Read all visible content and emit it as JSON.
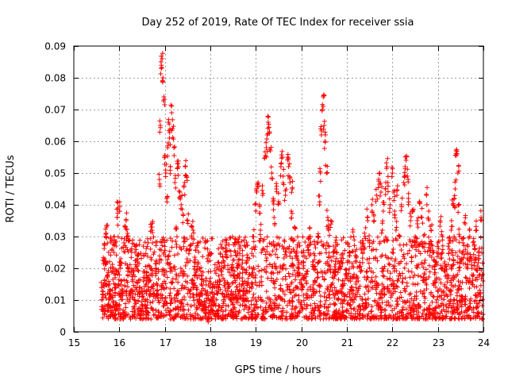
{
  "chart_data": {
    "type": "scatter",
    "title": "Day 252 of 2019, Rate Of TEC Index for receiver ssia",
    "xlabel": "GPS time / hours",
    "ylabel": "ROTI / TECUs",
    "xlim": [
      15,
      24
    ],
    "ylim": [
      0,
      0.09
    ],
    "xticks": [
      "15",
      "16",
      "17",
      "18",
      "19",
      "20",
      "21",
      "22",
      "23",
      "24"
    ],
    "yticks": [
      "0",
      "0.01",
      "0.02",
      "0.03",
      "0.04",
      "0.05",
      "0.06",
      "0.07",
      "0.08",
      "0.09"
    ],
    "grid": true,
    "marker": "+",
    "color": "#ff0000",
    "series": [
      {
        "name": "ROTI",
        "points": [
          [
            15.62,
            0.01
          ],
          [
            15.65,
            0.015
          ],
          [
            15.68,
            0.023
          ],
          [
            15.7,
            0.03
          ],
          [
            15.72,
            0.033
          ],
          [
            15.75,
            0.018
          ],
          [
            15.78,
            0.012
          ],
          [
            15.8,
            0.008
          ],
          [
            15.85,
            0.02
          ],
          [
            15.88,
            0.025
          ],
          [
            15.9,
            0.014
          ],
          [
            15.93,
            0.027
          ],
          [
            15.95,
            0.036
          ],
          [
            15.97,
            0.039
          ],
          [
            16.0,
            0.038
          ],
          [
            16.02,
            0.022
          ],
          [
            16.05,
            0.016
          ],
          [
            16.08,
            0.012
          ],
          [
            16.1,
            0.028
          ],
          [
            16.13,
            0.033
          ],
          [
            16.15,
            0.035
          ],
          [
            16.18,
            0.031
          ],
          [
            16.2,
            0.02
          ],
          [
            16.25,
            0.012
          ],
          [
            16.3,
            0.018
          ],
          [
            16.35,
            0.009
          ],
          [
            16.4,
            0.022
          ],
          [
            16.45,
            0.014
          ],
          [
            16.5,
            0.011
          ],
          [
            16.55,
            0.019
          ],
          [
            16.6,
            0.013
          ],
          [
            16.65,
            0.016
          ],
          [
            16.7,
            0.033
          ],
          [
            16.72,
            0.032
          ],
          [
            16.75,
            0.015
          ],
          [
            16.8,
            0.02
          ],
          [
            16.85,
            0.012
          ],
          [
            16.88,
            0.048
          ],
          [
            16.9,
            0.065
          ],
          [
            16.92,
            0.083
          ],
          [
            16.94,
            0.086
          ],
          [
            16.96,
            0.08
          ],
          [
            16.98,
            0.074
          ],
          [
            17.0,
            0.055
          ],
          [
            17.02,
            0.05
          ],
          [
            17.04,
            0.042
          ],
          [
            17.06,
            0.058
          ],
          [
            17.08,
            0.066
          ],
          [
            17.1,
            0.061
          ],
          [
            17.12,
            0.052
          ],
          [
            17.15,
            0.069
          ],
          [
            17.17,
            0.064
          ],
          [
            17.2,
            0.058
          ],
          [
            17.22,
            0.047
          ],
          [
            17.25,
            0.033
          ],
          [
            17.28,
            0.053
          ],
          [
            17.3,
            0.052
          ],
          [
            17.33,
            0.044
          ],
          [
            17.36,
            0.04
          ],
          [
            17.4,
            0.037
          ],
          [
            17.42,
            0.046
          ],
          [
            17.45,
            0.052
          ],
          [
            17.48,
            0.049
          ],
          [
            17.5,
            0.035
          ],
          [
            17.55,
            0.026
          ],
          [
            17.6,
            0.033
          ],
          [
            17.62,
            0.032
          ],
          [
            17.65,
            0.022
          ],
          [
            17.7,
            0.014
          ],
          [
            17.75,
            0.01
          ],
          [
            17.8,
            0.015
          ],
          [
            17.85,
            0.008
          ],
          [
            17.9,
            0.012
          ],
          [
            17.95,
            0.006
          ],
          [
            18.0,
            0.01
          ],
          [
            18.05,
            0.014
          ],
          [
            18.1,
            0.009
          ],
          [
            18.15,
            0.012
          ],
          [
            18.2,
            0.016
          ],
          [
            18.25,
            0.02
          ],
          [
            18.3,
            0.022
          ],
          [
            18.35,
            0.028
          ],
          [
            18.4,
            0.015
          ],
          [
            18.45,
            0.012
          ],
          [
            18.5,
            0.018
          ],
          [
            18.55,
            0.025
          ],
          [
            18.6,
            0.02
          ],
          [
            18.65,
            0.013
          ],
          [
            18.7,
            0.017
          ],
          [
            18.75,
            0.01
          ],
          [
            18.8,
            0.022
          ],
          [
            18.85,
            0.018
          ],
          [
            18.9,
            0.015
          ],
          [
            18.95,
            0.03
          ],
          [
            19.0,
            0.038
          ],
          [
            19.02,
            0.044
          ],
          [
            19.05,
            0.047
          ],
          [
            19.08,
            0.04
          ],
          [
            19.1,
            0.032
          ],
          [
            19.15,
            0.043
          ],
          [
            19.2,
            0.055
          ],
          [
            19.23,
            0.058
          ],
          [
            19.25,
            0.062
          ],
          [
            19.27,
            0.066
          ],
          [
            19.3,
            0.063
          ],
          [
            19.32,
            0.057
          ],
          [
            19.35,
            0.05
          ],
          [
            19.38,
            0.042
          ],
          [
            19.4,
            0.036
          ],
          [
            19.45,
            0.045
          ],
          [
            19.5,
            0.041
          ],
          [
            19.55,
            0.052
          ],
          [
            19.58,
            0.055
          ],
          [
            19.6,
            0.049
          ],
          [
            19.65,
            0.043
          ],
          [
            19.7,
            0.055
          ],
          [
            19.72,
            0.052
          ],
          [
            19.75,
            0.047
          ],
          [
            19.78,
            0.038
          ],
          [
            19.8,
            0.045
          ],
          [
            19.85,
            0.033
          ],
          [
            19.9,
            0.024
          ],
          [
            19.95,
            0.02
          ],
          [
            20.0,
            0.015
          ],
          [
            20.05,
            0.022
          ],
          [
            20.1,
            0.018
          ],
          [
            20.15,
            0.025
          ],
          [
            20.2,
            0.03
          ],
          [
            20.25,
            0.022
          ],
          [
            20.3,
            0.016
          ],
          [
            20.35,
            0.028
          ],
          [
            20.4,
            0.04
          ],
          [
            20.42,
            0.05
          ],
          [
            20.44,
            0.062
          ],
          [
            20.46,
            0.07
          ],
          [
            20.48,
            0.074
          ],
          [
            20.5,
            0.065
          ],
          [
            20.52,
            0.06
          ],
          [
            20.55,
            0.05
          ],
          [
            20.58,
            0.036
          ],
          [
            20.6,
            0.032
          ],
          [
            20.65,
            0.035
          ],
          [
            20.7,
            0.025
          ],
          [
            20.75,
            0.018
          ],
          [
            20.8,
            0.012
          ],
          [
            20.85,
            0.02
          ],
          [
            20.9,
            0.015
          ],
          [
            20.95,
            0.01
          ],
          [
            21.0,
            0.018
          ],
          [
            21.05,
            0.024
          ],
          [
            21.1,
            0.014
          ],
          [
            21.15,
            0.03
          ],
          [
            21.2,
            0.022
          ],
          [
            21.25,
            0.016
          ],
          [
            21.3,
            0.019
          ],
          [
            21.35,
            0.025
          ],
          [
            21.4,
            0.03
          ],
          [
            21.45,
            0.036
          ],
          [
            21.5,
            0.028
          ],
          [
            21.55,
            0.04
          ],
          [
            21.6,
            0.035
          ],
          [
            21.65,
            0.043
          ],
          [
            21.7,
            0.048
          ],
          [
            21.72,
            0.05
          ],
          [
            21.75,
            0.044
          ],
          [
            21.78,
            0.032
          ],
          [
            21.8,
            0.038
          ],
          [
            21.85,
            0.045
          ],
          [
            21.88,
            0.052
          ],
          [
            21.9,
            0.047
          ],
          [
            21.95,
            0.04
          ],
          [
            22.0,
            0.05
          ],
          [
            22.03,
            0.044
          ],
          [
            22.05,
            0.038
          ],
          [
            22.08,
            0.032
          ],
          [
            22.1,
            0.043
          ],
          [
            22.15,
            0.03
          ],
          [
            22.2,
            0.04
          ],
          [
            22.25,
            0.047
          ],
          [
            22.28,
            0.052
          ],
          [
            22.3,
            0.054
          ],
          [
            22.33,
            0.049
          ],
          [
            22.35,
            0.042
          ],
          [
            22.4,
            0.035
          ],
          [
            22.45,
            0.038
          ],
          [
            22.5,
            0.03
          ],
          [
            22.55,
            0.034
          ],
          [
            22.6,
            0.041
          ],
          [
            22.65,
            0.036
          ],
          [
            22.7,
            0.028
          ],
          [
            22.75,
            0.043
          ],
          [
            22.8,
            0.038
          ],
          [
            22.85,
            0.032
          ],
          [
            22.9,
            0.025
          ],
          [
            22.95,
            0.022
          ],
          [
            23.0,
            0.028
          ],
          [
            23.05,
            0.035
          ],
          [
            23.1,
            0.03
          ],
          [
            23.15,
            0.022
          ],
          [
            23.2,
            0.018
          ],
          [
            23.25,
            0.026
          ],
          [
            23.3,
            0.035
          ],
          [
            23.33,
            0.04
          ],
          [
            23.36,
            0.042
          ],
          [
            23.38,
            0.045
          ],
          [
            23.4,
            0.057
          ],
          [
            23.42,
            0.056
          ],
          [
            23.44,
            0.05
          ],
          [
            23.46,
            0.04
          ],
          [
            23.48,
            0.03
          ],
          [
            23.5,
            0.022
          ],
          [
            23.55,
            0.028
          ],
          [
            23.6,
            0.034
          ],
          [
            23.65,
            0.025
          ],
          [
            23.7,
            0.03
          ],
          [
            23.75,
            0.02
          ],
          [
            23.8,
            0.027
          ],
          [
            23.85,
            0.032
          ],
          [
            23.9,
            0.024
          ],
          [
            23.95,
            0.036
          ]
        ],
        "baseline_band": [
          0.004,
          0.03
        ]
      }
    ]
  }
}
